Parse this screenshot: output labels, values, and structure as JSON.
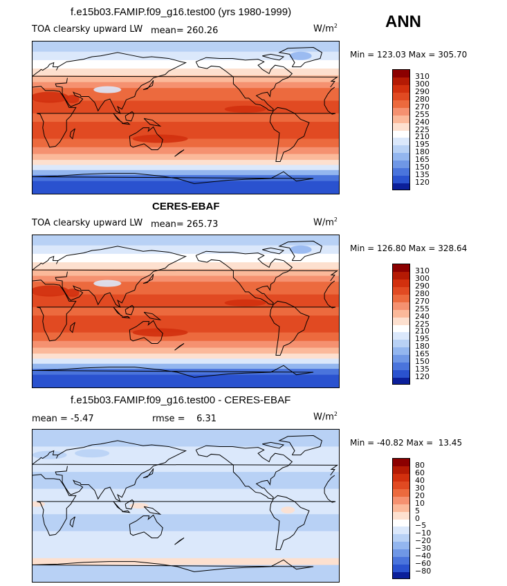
{
  "season": "ANN",
  "panels": [
    {
      "title": "f.e15b03.FAMIP.f09_g16.test00 (yrs 1980-1999)",
      "variable": "TOA clearsky upward LW",
      "mean_label": "mean= 260.26",
      "units": "W/m",
      "units_sup": "2",
      "minmax": "Min = 123.03 Max = 305.70",
      "type": "absolute"
    },
    {
      "title": "CERES-EBAF",
      "variable": "TOA clearsky upward LW",
      "mean_label": "mean= 265.73",
      "units": "W/m",
      "units_sup": "2",
      "minmax": "Min = 126.80 Max = 328.64",
      "type": "absolute"
    },
    {
      "title": "f.e15b03.FAMIP.f09_g16.test00 - CERES-EBAF",
      "mean_label": "mean =   -5.47",
      "rmse_label": "rmse =    6.31",
      "units": "W/m",
      "units_sup": "2",
      "minmax": "Min = -40.82 Max =  13.45",
      "type": "difference"
    }
  ],
  "colorbar_abs": {
    "labels": [
      "310",
      "300",
      "290",
      "280",
      "270",
      "255",
      "240",
      "225",
      "210",
      "195",
      "180",
      "165",
      "150",
      "135",
      "120"
    ],
    "colors": [
      "#8b0000",
      "#b41a04",
      "#d2300e",
      "#e14a22",
      "#ec6a3e",
      "#f59170",
      "#fbb99a",
      "#fde0cf",
      "#ffffff",
      "#dbe8fb",
      "#b8d1f5",
      "#93b6ef",
      "#6f97e6",
      "#4a74dc",
      "#2a52cf",
      "#0b1f9a"
    ]
  },
  "colorbar_diff": {
    "labels": [
      "80",
      "60",
      "40",
      "30",
      "20",
      "10",
      "5",
      "0",
      "−5",
      "−10",
      "−20",
      "−30",
      "−40",
      "−60",
      "−80"
    ],
    "colors": [
      "#8b0000",
      "#b41a04",
      "#d2300e",
      "#e14a22",
      "#ec6a3e",
      "#f59170",
      "#fbb99a",
      "#fde0cf",
      "#ffffff",
      "#dbe8fb",
      "#b8d1f5",
      "#93b6ef",
      "#6f97e6",
      "#4a74dc",
      "#2a52cf",
      "#0b1f9a"
    ]
  }
}
